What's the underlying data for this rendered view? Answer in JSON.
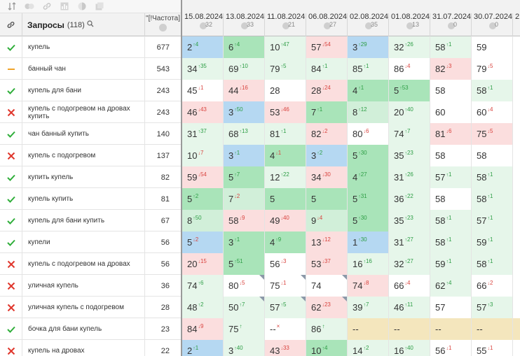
{
  "toolbar": {
    "icons": [
      "sort-icon",
      "toggle-icon",
      "link-icon",
      "chart-icon",
      "contrast-icon",
      "copy-icon"
    ]
  },
  "header": {
    "query_title": "Запросы",
    "query_count": "(118)",
    "freq_label": "\"[!Частота]"
  },
  "dates": [
    {
      "date": "15.08.2024",
      "num": "32"
    },
    {
      "date": "13.08.2024",
      "num": "33"
    },
    {
      "date": "11.08.2024",
      "num": "21"
    },
    {
      "date": "06.08.2024",
      "num": "27"
    },
    {
      "date": "02.08.2024",
      "num": "35"
    },
    {
      "date": "01.08.2024",
      "num": "13"
    },
    {
      "date": "31.07.2024",
      "num": "0"
    },
    {
      "date": "30.07.2024",
      "num": "0"
    },
    {
      "date": "2",
      "num": ""
    }
  ],
  "colors": {
    "check": "#2fae3a",
    "cross": "#e0362c",
    "dash": "#f0a32a"
  },
  "rows": [
    {
      "status": "check",
      "query": "купель",
      "freq": "677",
      "cells": [
        [
          "2",
          "4",
          "up",
          "bl"
        ],
        [
          "6",
          "4",
          "up",
          "g3"
        ],
        [
          "10",
          "47",
          "up",
          "g1"
        ],
        [
          "57",
          "54",
          "dn",
          "rd"
        ],
        [
          "3",
          "29",
          "up",
          "bl"
        ],
        [
          "32",
          "26",
          "up",
          "g1"
        ],
        [
          "58",
          "1",
          "up",
          "g1"
        ],
        [
          "59",
          "",
          "",
          "wh"
        ],
        [
          "",
          "",
          "",
          "wh"
        ]
      ]
    },
    {
      "status": "dash",
      "query": "банный чан",
      "freq": "543",
      "cells": [
        [
          "34",
          "35",
          "up",
          "g1"
        ],
        [
          "69",
          "10",
          "up",
          "g1"
        ],
        [
          "79",
          "5",
          "up",
          "g1"
        ],
        [
          "84",
          "1",
          "up",
          "g1"
        ],
        [
          "85",
          "1",
          "up",
          "g1"
        ],
        [
          "86",
          "4",
          "dn",
          "wh"
        ],
        [
          "82",
          "3",
          "dn",
          "rd"
        ],
        [
          "79",
          "5",
          "dn",
          "wh"
        ],
        [
          "",
          "",
          "",
          "wh"
        ]
      ]
    },
    {
      "status": "check",
      "query": "купель для бани",
      "freq": "243",
      "cells": [
        [
          "45",
          "1",
          "dn",
          "wh"
        ],
        [
          "44",
          "16",
          "dn",
          "rd"
        ],
        [
          "28",
          "",
          "",
          "wh"
        ],
        [
          "28",
          "24",
          "dn",
          "rd"
        ],
        [
          "4",
          "1",
          "up",
          "g3"
        ],
        [
          "5",
          "53",
          "up",
          "g3"
        ],
        [
          "58",
          "",
          "",
          "wh"
        ],
        [
          "58",
          "1",
          "up",
          "g1"
        ],
        [
          "",
          "",
          "",
          "wh"
        ]
      ]
    },
    {
      "status": "cross",
      "query": "купель с подогревом на дровах купить",
      "freq": "243",
      "cells": [
        [
          "46",
          "43",
          "dn",
          "rd"
        ],
        [
          "3",
          "50",
          "up",
          "bl"
        ],
        [
          "53",
          "46",
          "dn",
          "rd"
        ],
        [
          "7",
          "1",
          "up",
          "g3"
        ],
        [
          "8",
          "12",
          "up",
          "g2"
        ],
        [
          "20",
          "40",
          "up",
          "g1"
        ],
        [
          "60",
          "",
          "",
          "wh"
        ],
        [
          "60",
          "4",
          "dn",
          "wh"
        ],
        [
          "",
          "",
          "",
          "wh"
        ]
      ]
    },
    {
      "status": "check",
      "query": "чан банный купить",
      "freq": "140",
      "cells": [
        [
          "31",
          "37",
          "up",
          "g1"
        ],
        [
          "68",
          "13",
          "up",
          "g1"
        ],
        [
          "81",
          "1",
          "up",
          "g1"
        ],
        [
          "82",
          "2",
          "dn",
          "rd"
        ],
        [
          "80",
          "6",
          "dn",
          "wh"
        ],
        [
          "74",
          "7",
          "up",
          "g1"
        ],
        [
          "81",
          "6",
          "dn",
          "rd"
        ],
        [
          "75",
          "5",
          "dn",
          "rd"
        ],
        [
          "",
          "",
          "",
          "wh"
        ]
      ]
    },
    {
      "status": "cross",
      "query": "купель с подогревом",
      "freq": "137",
      "cells": [
        [
          "10",
          "7",
          "dn",
          "g1"
        ],
        [
          "3",
          "1",
          "up",
          "bl"
        ],
        [
          "4",
          "1",
          "dn",
          "g3"
        ],
        [
          "3",
          "2",
          "up",
          "bl"
        ],
        [
          "5",
          "30",
          "up",
          "g3"
        ],
        [
          "35",
          "23",
          "up",
          "g1"
        ],
        [
          "58",
          "",
          "",
          "wh"
        ],
        [
          "58",
          "",
          "",
          "wh"
        ],
        [
          "",
          "",
          "",
          "wh"
        ]
      ]
    },
    {
      "status": "check",
      "query": "купить купель",
      "freq": "82",
      "cells": [
        [
          "59",
          "54",
          "dn",
          "rd"
        ],
        [
          "5",
          "7",
          "up",
          "g3"
        ],
        [
          "12",
          "22",
          "up",
          "g1"
        ],
        [
          "34",
          "30",
          "dn",
          "rd"
        ],
        [
          "4",
          "27",
          "up",
          "g3"
        ],
        [
          "31",
          "26",
          "up",
          "g1"
        ],
        [
          "57",
          "1",
          "up",
          "g1"
        ],
        [
          "58",
          "1",
          "up",
          "g1"
        ],
        [
          "",
          "",
          "",
          "wh"
        ]
      ]
    },
    {
      "status": "check",
      "query": "купель купить",
      "freq": "81",
      "cells": [
        [
          "5",
          "2",
          "up",
          "g3"
        ],
        [
          "7",
          "2",
          "dn",
          "g2"
        ],
        [
          "5",
          "",
          "",
          "g3"
        ],
        [
          "5",
          "",
          "",
          "g3"
        ],
        [
          "5",
          "31",
          "up",
          "g3"
        ],
        [
          "36",
          "22",
          "up",
          "g1"
        ],
        [
          "58",
          "",
          "",
          "wh"
        ],
        [
          "58",
          "1",
          "up",
          "g1"
        ],
        [
          "",
          "",
          "",
          "wh"
        ]
      ]
    },
    {
      "status": "check",
      "query": "купель для бани купить",
      "freq": "67",
      "cells": [
        [
          "8",
          "50",
          "up",
          "g2"
        ],
        [
          "58",
          "9",
          "dn",
          "rd"
        ],
        [
          "49",
          "40",
          "dn",
          "rd"
        ],
        [
          "9",
          "4",
          "dn",
          "g2"
        ],
        [
          "5",
          "30",
          "up",
          "g3"
        ],
        [
          "35",
          "23",
          "up",
          "g1"
        ],
        [
          "58",
          "1",
          "up",
          "g1"
        ],
        [
          "57",
          "1",
          "up",
          "g1"
        ],
        [
          "",
          "",
          "",
          "wh"
        ]
      ]
    },
    {
      "status": "check",
      "query": "купели",
      "freq": "56",
      "cells": [
        [
          "5",
          "2",
          "dn",
          "bl"
        ],
        [
          "3",
          "1",
          "up",
          "g3"
        ],
        [
          "4",
          "9",
          "up",
          "g3"
        ],
        [
          "13",
          "12",
          "dn",
          "rd"
        ],
        [
          "1",
          "30",
          "up",
          "bl"
        ],
        [
          "31",
          "27",
          "up",
          "g1"
        ],
        [
          "58",
          "1",
          "up",
          "g1"
        ],
        [
          "59",
          "1",
          "up",
          "g1"
        ],
        [
          "",
          "",
          "",
          "wh"
        ]
      ]
    },
    {
      "status": "cross",
      "query": "купель с подогревом на дровах",
      "freq": "56",
      "cells": [
        [
          "20",
          "15",
          "dn",
          "rd"
        ],
        [
          "5",
          "51",
          "up",
          "g3"
        ],
        [
          "56",
          "3",
          "dn",
          "wh"
        ],
        [
          "53",
          "37",
          "dn",
          "rd"
        ],
        [
          "16",
          "16",
          "up",
          "g1"
        ],
        [
          "32",
          "27",
          "up",
          "g1"
        ],
        [
          "59",
          "1",
          "up",
          "g1"
        ],
        [
          "58",
          "1",
          "up",
          "g1"
        ],
        [
          "",
          "",
          "",
          "wh"
        ]
      ]
    },
    {
      "status": "cross",
      "query": "уличная купель",
      "freq": "36",
      "cells": [
        [
          "74",
          "6",
          "up",
          "g1"
        ],
        [
          "80",
          "5",
          "dn",
          "wh"
        ],
        [
          "75",
          "1",
          "dn",
          "wh"
        ],
        [
          "74",
          "",
          "",
          "wh"
        ],
        [
          "74",
          "8",
          "dn",
          "rd"
        ],
        [
          "66",
          "4",
          "dn",
          "wh"
        ],
        [
          "62",
          "4",
          "up",
          "g1"
        ],
        [
          "66",
          "2",
          "dn",
          "wh"
        ],
        [
          "",
          "",
          "",
          "wh"
        ]
      ]
    },
    {
      "status": "cross",
      "query": "уличная купель с подогревом",
      "freq": "28",
      "cells": [
        [
          "48",
          "2",
          "up",
          "g1"
        ],
        [
          "50",
          "7",
          "up",
          "g1"
        ],
        [
          "57",
          "5",
          "up",
          "g1"
        ],
        [
          "62",
          "23",
          "dn",
          "rd"
        ],
        [
          "39",
          "7",
          "up",
          "g1"
        ],
        [
          "46",
          "11",
          "up",
          "g1"
        ],
        [
          "57",
          "",
          "",
          "wh"
        ],
        [
          "57",
          "3",
          "up",
          "g1"
        ],
        [
          "",
          "",
          "",
          "wh"
        ]
      ]
    },
    {
      "status": "check",
      "query": "бочка для бани купель",
      "freq": "23",
      "cells": [
        [
          "84",
          "9",
          "dn",
          "rd"
        ],
        [
          "75",
          "↑",
          "up",
          "g1"
        ],
        [
          "--",
          "×",
          "dn",
          "wh"
        ],
        [
          "86",
          "↑",
          "up",
          "g1"
        ],
        [
          "--",
          "",
          "",
          "yl"
        ],
        [
          "--",
          "",
          "",
          "yl"
        ],
        [
          "--",
          "",
          "",
          "yl"
        ],
        [
          "--",
          "",
          "",
          "yl"
        ],
        [
          "",
          "",
          "",
          "yl"
        ]
      ]
    },
    {
      "status": "cross",
      "query": "купель на дровах",
      "freq": "22",
      "cells": [
        [
          "2",
          "1",
          "up",
          "bl"
        ],
        [
          "3",
          "40",
          "up",
          "g1"
        ],
        [
          "43",
          "33",
          "dn",
          "rd"
        ],
        [
          "10",
          "4",
          "up",
          "g3"
        ],
        [
          "14",
          "2",
          "up",
          "g1"
        ],
        [
          "16",
          "40",
          "up",
          "g1"
        ],
        [
          "56",
          "1",
          "dn",
          "wh"
        ],
        [
          "55",
          "1",
          "dn",
          "wh"
        ],
        [
          "",
          "",
          "",
          "wh"
        ]
      ]
    }
  ]
}
